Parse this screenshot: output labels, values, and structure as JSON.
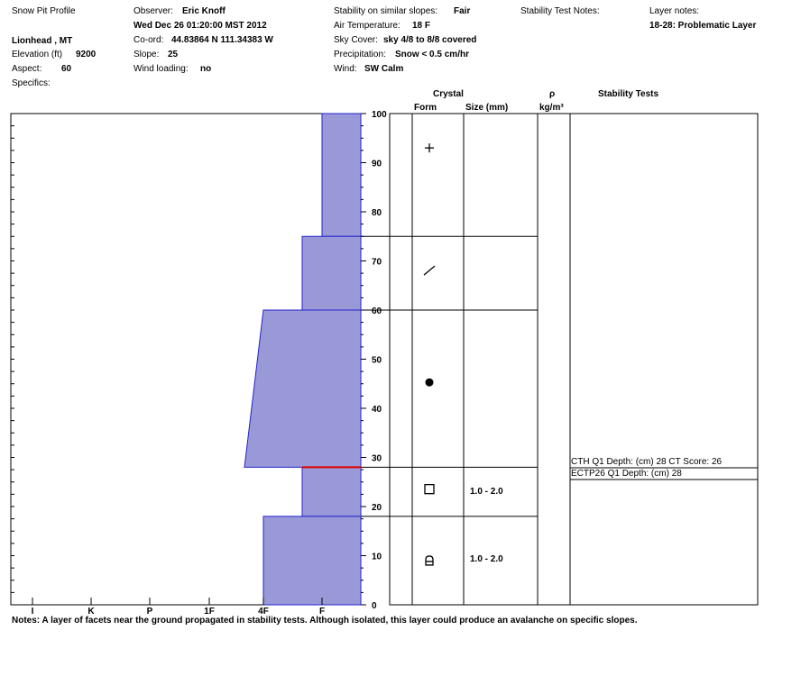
{
  "header": {
    "title": "Snow Pit Profile",
    "location": "Lionhead , MT",
    "elevation_label": "Elevation (ft)",
    "elevation_value": "9200",
    "aspect_label": "Aspect:",
    "aspect_value": "60",
    "specifics_label": "Specifics:",
    "observer_label": "Observer:",
    "observer_value": "Eric Knoff",
    "datetime": "Wed Dec 26 01:20:00 MST 2012",
    "coord_label": "Co-ord:",
    "coord_value": "44.83864 N 111.34383 W",
    "slope_label": "Slope:",
    "slope_value": "25",
    "wind_loading_label": "Wind loading:",
    "wind_loading_value": "no",
    "stability_label": "Stability on similar slopes:",
    "stability_value": "Fair",
    "air_temp_label": "Air Temperature:",
    "air_temp_value": "18 F",
    "sky_label": "Sky Cover:",
    "sky_value": "sky 4/8 to 8/8 covered",
    "precip_label": "Precipitation:",
    "precip_value": "Snow < 0.5 cm/hr",
    "wind_label": "Wind:",
    "wind_value": "SW Calm",
    "stability_notes_label": "Stability Test Notes:",
    "layer_notes_label": "Layer notes:",
    "layer_notes_value": "18-28: Problematic Layer"
  },
  "columns": {
    "crystal": "Crystal",
    "form": "Form",
    "size": "Size (mm)",
    "rho": "ρ",
    "density_unit": "kg/m³",
    "stability_tests": "Stability Tests"
  },
  "notes": "Notes:  A layer of facets near the ground propagated in stability tests.  Although isolated, this layer could produce an avalanche on specific slopes.",
  "chart_data": {
    "type": "area",
    "title": "",
    "xlabel": "",
    "ylabel": "",
    "x_categories": [
      "I",
      "K",
      "P",
      "1F",
      "4F",
      "F"
    ],
    "ylim": [
      0,
      100
    ],
    "y_ticks": [
      0,
      10,
      20,
      30,
      40,
      50,
      60,
      70,
      80,
      90,
      100
    ],
    "hardness_layers": [
      {
        "from": 75,
        "to": 100,
        "hardness_top": "F",
        "hardness_bottom": "F"
      },
      {
        "from": 60,
        "to": 75,
        "hardness_top": "F+",
        "hardness_bottom": "F+"
      },
      {
        "from": 28,
        "to": 60,
        "hardness_top": "4F",
        "hardness_bottom": "4F-"
      },
      {
        "from": 18,
        "to": 28,
        "hardness_top": "F+",
        "hardness_bottom": "F+"
      },
      {
        "from": 0,
        "to": 18,
        "hardness_top": "4F",
        "hardness_bottom": "4F"
      }
    ],
    "problem_layer_depth": 28,
    "crystal_layers": [
      {
        "from": 75,
        "to": 100,
        "form": "plus",
        "size": ""
      },
      {
        "from": 60,
        "to": 75,
        "form": "slash",
        "size": ""
      },
      {
        "from": 28,
        "to": 60,
        "form": "dot",
        "size": ""
      },
      {
        "from": 18,
        "to": 28,
        "form": "square",
        "size": "1.0 - 2.0"
      },
      {
        "from": 0,
        "to": 18,
        "form": "depth-hoar",
        "size": "1.0 - 2.0"
      }
    ],
    "stability_tests": [
      {
        "text": "CTH Q1 Depth: (cm) 28 CT Score: 26",
        "depth": 28
      },
      {
        "text": "ECTP26 Q1 Depth: (cm) 28",
        "depth": 28
      }
    ],
    "colors": {
      "fill": "#9999d8",
      "edge": "#2222cc",
      "problem": "#dd0000"
    }
  }
}
